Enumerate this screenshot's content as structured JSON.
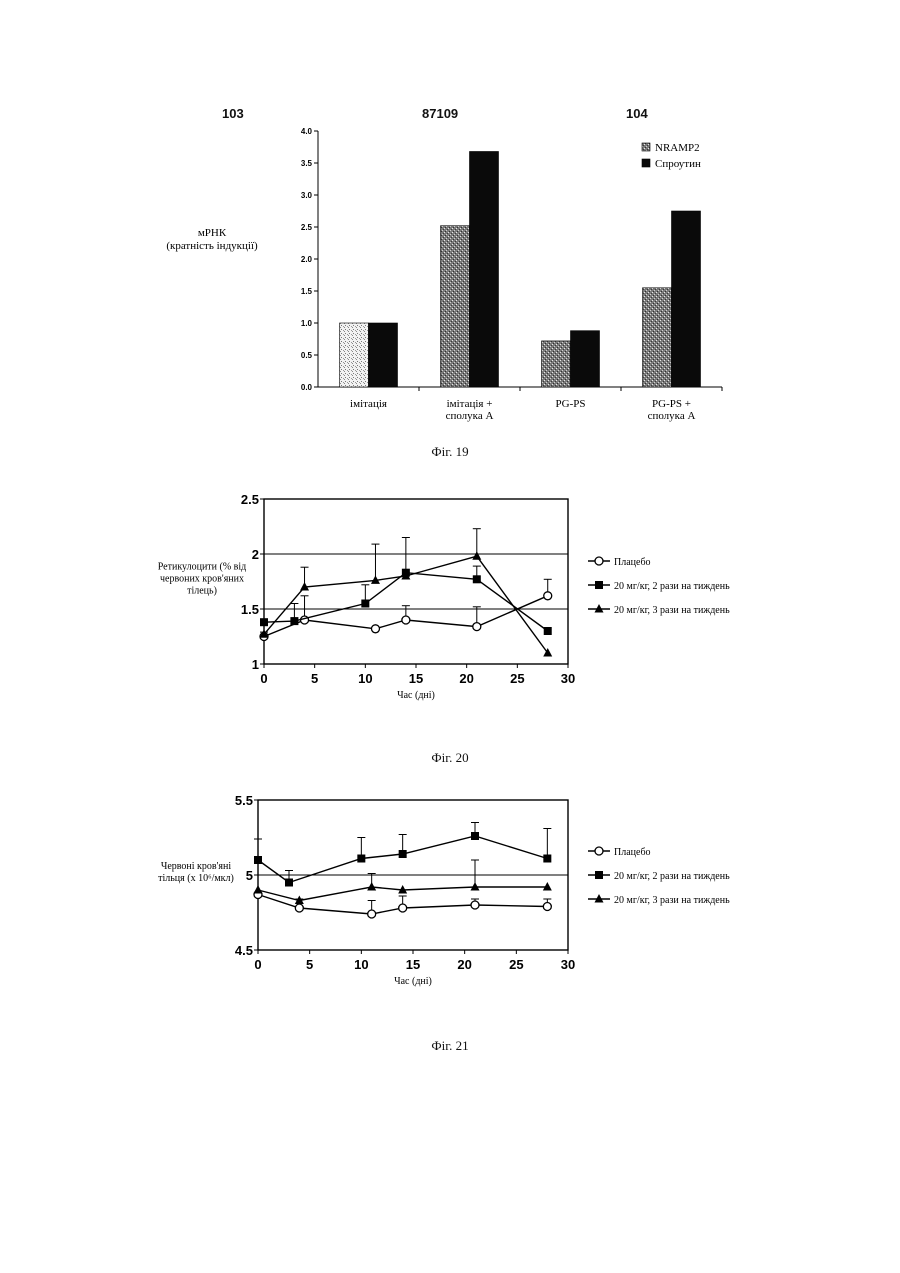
{
  "page_numbers": {
    "left": "103",
    "center": "87109",
    "right": "104"
  },
  "captions": {
    "fig19": "Фіг. 19",
    "fig20": "Фіг. 20",
    "fig21": "Фіг. 21"
  },
  "chart_data": [
    {
      "type": "bar",
      "ylabel": [
        "мРНК",
        "(кратність індукції)"
      ],
      "ylim": [
        0,
        4
      ],
      "yticks": [
        "0.0",
        "0.5",
        "1.0",
        "1.5",
        "2.0",
        "2.5",
        "3.0",
        "3.5",
        "4.0"
      ],
      "categories": [
        [
          "імітація"
        ],
        [
          "імітація +",
          "сполука А"
        ],
        [
          "PG-PS"
        ],
        [
          "PG-PS +",
          "сполука А"
        ]
      ],
      "legend_position": "top-right",
      "series": [
        {
          "name": "NRAMP2",
          "values": [
            1.0,
            2.52,
            0.72,
            1.55
          ],
          "color": "#8a8a8a"
        },
        {
          "name": "Спроутин",
          "values": [
            1.0,
            3.68,
            0.88,
            2.75
          ],
          "color": "#0a0a0a"
        }
      ]
    },
    {
      "type": "line",
      "ylabel": [
        "Ретикулоцити (% від",
        "червоних кров'яних",
        "тілець)"
      ],
      "xlabel": "Час (дні)",
      "xlim": [
        0,
        30
      ],
      "ylim": [
        1,
        2.5
      ],
      "xticks": [
        "0",
        "5",
        "10",
        "15",
        "20",
        "25",
        "30"
      ],
      "yticks": [
        "1",
        "1.5",
        "2",
        "2.5"
      ],
      "legend_position": "right",
      "series": [
        {
          "name": "Плацебо",
          "marker": "circle-open",
          "x": [
            0,
            4,
            11,
            14,
            21,
            28
          ],
          "y": [
            1.25,
            1.4,
            1.32,
            1.4,
            1.34,
            1.62
          ],
          "err": [
            0.04,
            0.22,
            0.0,
            0.13,
            0.18,
            0.15
          ]
        },
        {
          "name": "20 мг/кг, 2 рази на тиждень",
          "marker": "square",
          "x": [
            0,
            3,
            10,
            14,
            21,
            28
          ],
          "y": [
            1.38,
            1.39,
            1.55,
            1.83,
            1.77,
            1.3
          ],
          "err": [
            0.0,
            0.16,
            0.17,
            0.0,
            0.12,
            0.0
          ]
        },
        {
          "name": "20 мг/кг, 3 рази на тиждень",
          "marker": "triangle",
          "x": [
            0,
            4,
            11,
            14,
            21,
            28
          ],
          "y": [
            1.27,
            1.7,
            1.76,
            1.8,
            1.98,
            1.1
          ],
          "err": [
            0.0,
            0.18,
            0.33,
            0.35,
            0.25,
            0.0
          ]
        }
      ]
    },
    {
      "type": "line",
      "ylabel": [
        "Червоні кров'яні",
        "тільця (x 10⁶/мкл)"
      ],
      "xlabel": "Час (дні)",
      "xlim": [
        0,
        30
      ],
      "ylim": [
        4.5,
        5.5
      ],
      "xticks": [
        "0",
        "5",
        "10",
        "15",
        "20",
        "25",
        "30"
      ],
      "yticks": [
        "4.5",
        "5",
        "5.5"
      ],
      "legend_position": "right",
      "series": [
        {
          "name": "Плацебо",
          "marker": "circle-open",
          "x": [
            0,
            4,
            11,
            14,
            21,
            28
          ],
          "y": [
            4.87,
            4.78,
            4.74,
            4.78,
            4.8,
            4.79
          ],
          "err": [
            0.0,
            0.06,
            0.09,
            0.08,
            0.04,
            0.05
          ]
        },
        {
          "name": "20 мг/кг, 2 рази на тиждень",
          "marker": "square",
          "x": [
            0,
            3,
            10,
            14,
            21,
            28
          ],
          "y": [
            5.1,
            4.95,
            5.11,
            5.14,
            5.26,
            5.11
          ],
          "err": [
            0.14,
            0.08,
            0.14,
            0.13,
            0.09,
            0.2
          ]
        },
        {
          "name": "20 мг/кг, 3 рази на тиждень",
          "marker": "triangle",
          "x": [
            0,
            4,
            11,
            14,
            21,
            28
          ],
          "y": [
            4.9,
            4.83,
            4.92,
            4.9,
            4.92,
            4.92
          ],
          "err": [
            0.0,
            0.0,
            0.09,
            0.0,
            0.18,
            0.0
          ]
        }
      ]
    }
  ]
}
